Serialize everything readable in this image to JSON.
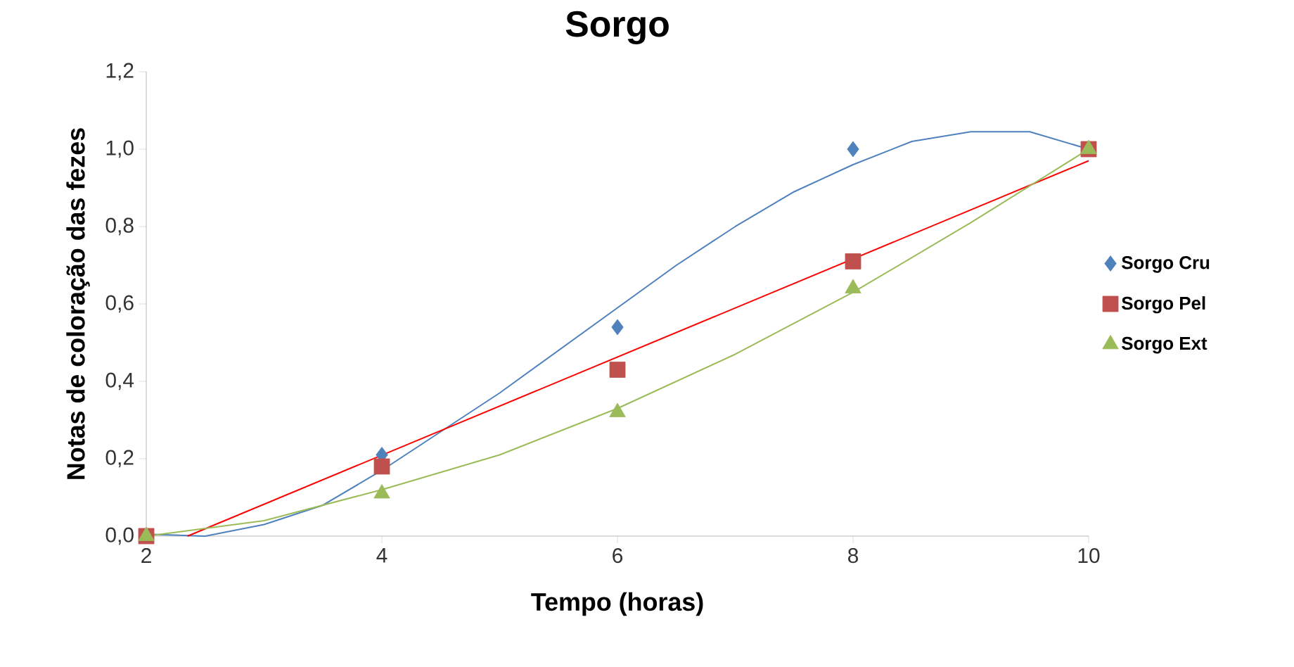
{
  "chart_data": {
    "type": "scatter",
    "title": "Sorgo",
    "xlabel": "Tempo (horas)",
    "ylabel": "Notas de coloração das fezes",
    "xlim": [
      2,
      10
    ],
    "xticks": [
      2,
      4,
      6,
      8,
      10
    ],
    "ylim": [
      0,
      1.2
    ],
    "yticks": [
      {
        "value": 0,
        "label": "0,0"
      },
      {
        "value": 0.2,
        "label": "0,2"
      },
      {
        "value": 0.4,
        "label": "0,4"
      },
      {
        "value": 0.6,
        "label": "0,6"
      },
      {
        "value": 0.8,
        "label": "0,8"
      },
      {
        "value": 1.0,
        "label": "1,0"
      },
      {
        "value": 1.2,
        "label": "1,2"
      }
    ],
    "grid": false,
    "legend": "right",
    "x": [
      2,
      4,
      6,
      8,
      10
    ],
    "series": [
      {
        "name": "Sorgo Cru",
        "color": "#4f81bd",
        "marker": "diamond",
        "values": [
          null,
          0.21,
          0.54,
          1.0,
          null
        ]
      },
      {
        "name": "Sorgo Pel",
        "color": "#c0504d",
        "marker": "square",
        "values": [
          0,
          0.18,
          0.43,
          0.71,
          1.0
        ]
      },
      {
        "name": "Sorgo Ext",
        "color": "#9bbb59",
        "marker": "triangle",
        "values": [
          0,
          0.11,
          0.32,
          0.64,
          1.0
        ]
      },
      {
        "type": "line",
        "color": "#4f81bd",
        "marker": "none",
        "x": [
          2,
          2.5,
          3,
          3.5,
          4,
          4.5,
          5,
          5.5,
          6,
          6.5,
          7,
          7.5,
          8,
          8.5,
          9,
          9.5,
          10
        ],
        "values": [
          0.005,
          0,
          0.03,
          0.08,
          0.17,
          0.27,
          0.37,
          0.48,
          0.59,
          0.7,
          0.8,
          0.89,
          0.96,
          1.02,
          1.045,
          1.045,
          1.0
        ]
      },
      {
        "type": "line",
        "color": "#ff0000",
        "marker": "none",
        "x": [
          2.35,
          10
        ],
        "values": [
          0,
          0.97
        ]
      },
      {
        "type": "line",
        "color": "#9bbb59",
        "marker": "none",
        "x": [
          2,
          3,
          4,
          5,
          6,
          7,
          8,
          9,
          10
        ],
        "values": [
          0,
          0.04,
          0.12,
          0.21,
          0.33,
          0.47,
          0.63,
          0.81,
          1.0
        ]
      }
    ]
  }
}
